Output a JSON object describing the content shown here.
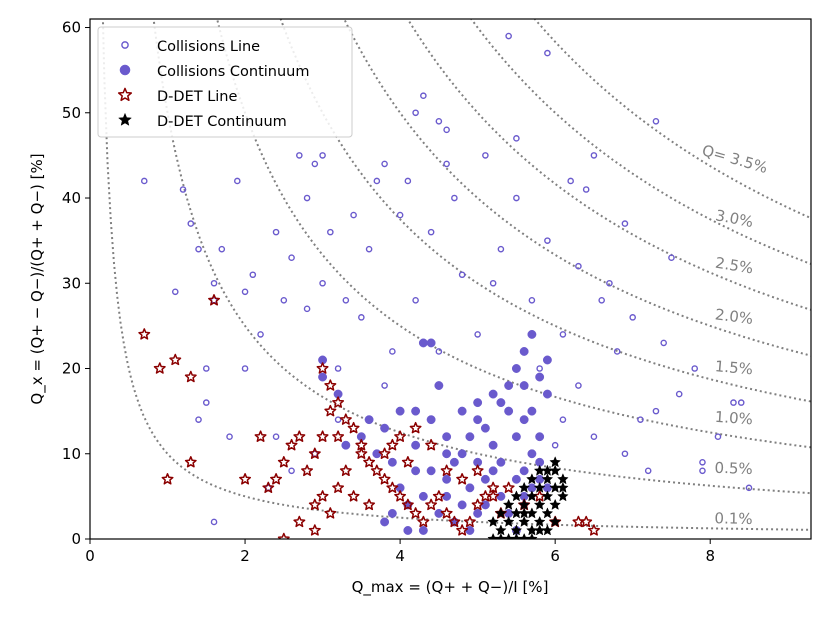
{
  "chart_data": {
    "type": "scatter",
    "xlabel": "Q_max = (Q+ + Q−)/I [%]",
    "ylabel": "Q_x = (Q+ − Q−)/(Q+ + Q−) [%]",
    "xlim": [
      0,
      9.3
    ],
    "ylim": [
      0,
      61
    ],
    "x_ticks": [
      "0",
      "2",
      "4",
      "6",
      "8"
    ],
    "y_ticks": [
      "0",
      "10",
      "20",
      "30",
      "40",
      "50",
      "60"
    ],
    "legend_position": "upper-left",
    "grid": false,
    "colors": {
      "collisions": "#6a5acd",
      "ddet_line": "#8b0000",
      "ddet_continuum": "#000000",
      "curves": "#808080"
    },
    "contours": [
      {
        "label": "Q= 3.5%",
        "q": 3.5
      },
      {
        "label": "3.0%",
        "q": 3.0
      },
      {
        "label": "2.5%",
        "q": 2.5
      },
      {
        "label": "2.0%",
        "q": 2.0
      },
      {
        "label": "1.5%",
        "q": 1.5
      },
      {
        "label": "1.0%",
        "q": 1.0
      },
      {
        "label": "0.5%",
        "q": 0.5
      },
      {
        "label": "0.1%",
        "q": 0.1
      }
    ],
    "series": [
      {
        "name": "Collisions Line",
        "marker": "open-circle",
        "points": [
          [
            5.4,
            59
          ],
          [
            5.9,
            57
          ],
          [
            6.5,
            45
          ],
          [
            7.3,
            49
          ],
          [
            6.9,
            37
          ],
          [
            8.1,
            12
          ],
          [
            8.3,
            16
          ],
          [
            8.4,
            16
          ],
          [
            7.8,
            20
          ],
          [
            7.4,
            23
          ],
          [
            7.0,
            26
          ],
          [
            6.3,
            32
          ],
          [
            5.9,
            35
          ],
          [
            4.3,
            52
          ],
          [
            4.5,
            49
          ],
          [
            4.6,
            44
          ],
          [
            4.2,
            50
          ],
          [
            3.8,
            44
          ],
          [
            4.1,
            42
          ],
          [
            4.4,
            36
          ],
          [
            4.7,
            40
          ],
          [
            5.1,
            45
          ],
          [
            5.5,
            40
          ],
          [
            5.2,
            30
          ],
          [
            5.7,
            28
          ],
          [
            6.1,
            24
          ],
          [
            6.6,
            28
          ],
          [
            7.9,
            9
          ],
          [
            7.6,
            17
          ],
          [
            7.2,
            8
          ],
          [
            6.0,
            11
          ],
          [
            6.8,
            22
          ],
          [
            3.0,
            45
          ],
          [
            2.9,
            44
          ],
          [
            2.8,
            40
          ],
          [
            3.1,
            36
          ],
          [
            2.6,
            33
          ],
          [
            2.4,
            36
          ],
          [
            2.0,
            29
          ],
          [
            1.6,
            30
          ],
          [
            1.6,
            28
          ],
          [
            1.4,
            34
          ],
          [
            1.3,
            37
          ],
          [
            1.2,
            41
          ],
          [
            1.1,
            29
          ],
          [
            0.7,
            42
          ],
          [
            1.5,
            20
          ],
          [
            1.5,
            16
          ],
          [
            1.4,
            14
          ],
          [
            1.6,
            2
          ],
          [
            1.8,
            12
          ],
          [
            2.0,
            20
          ],
          [
            2.4,
            12
          ],
          [
            2.3,
            6
          ],
          [
            2.6,
            8
          ],
          [
            3.2,
            20
          ],
          [
            3.5,
            26
          ],
          [
            3.6,
            34
          ],
          [
            3.9,
            22
          ],
          [
            4.2,
            28
          ],
          [
            4.8,
            31
          ],
          [
            5.3,
            34
          ],
          [
            5.8,
            20
          ],
          [
            6.1,
            14
          ],
          [
            6.5,
            12
          ],
          [
            6.9,
            10
          ],
          [
            7.1,
            14
          ],
          [
            8.5,
            6
          ],
          [
            7.9,
            8
          ],
          [
            2.2,
            24
          ],
          [
            2.5,
            28
          ],
          [
            3.4,
            38
          ],
          [
            3.7,
            42
          ],
          [
            4.0,
            38
          ],
          [
            4.6,
            48
          ],
          [
            5.5,
            47
          ],
          [
            6.2,
            42
          ],
          [
            6.4,
            41
          ],
          [
            6.7,
            30
          ],
          [
            7.5,
            33
          ],
          [
            1.9,
            42
          ],
          [
            2.7,
            45
          ],
          [
            1.7,
            34
          ],
          [
            2.1,
            31
          ],
          [
            3.0,
            30
          ],
          [
            3.3,
            28
          ],
          [
            2.8,
            27
          ],
          [
            6.3,
            18
          ],
          [
            7.3,
            15
          ],
          [
            5.0,
            24
          ],
          [
            4.5,
            22
          ],
          [
            3.8,
            18
          ],
          [
            3.2,
            14
          ],
          [
            2.9,
            10
          ]
        ]
      },
      {
        "name": "Collisions Continuum",
        "marker": "filled-circle",
        "points": [
          [
            3.0,
            21
          ],
          [
            3.0,
            19
          ],
          [
            3.2,
            17
          ],
          [
            3.6,
            14
          ],
          [
            3.8,
            13
          ],
          [
            4.0,
            15
          ],
          [
            4.2,
            15
          ],
          [
            4.4,
            14
          ],
          [
            4.6,
            12
          ],
          [
            4.8,
            10
          ],
          [
            4.9,
            12
          ],
          [
            5.0,
            14
          ],
          [
            5.1,
            13
          ],
          [
            5.2,
            11
          ],
          [
            5.3,
            16
          ],
          [
            5.4,
            18
          ],
          [
            5.5,
            20
          ],
          [
            5.6,
            22
          ],
          [
            5.7,
            24
          ],
          [
            5.6,
            18
          ],
          [
            5.8,
            19
          ],
          [
            5.9,
            21
          ],
          [
            5.9,
            17
          ],
          [
            5.6,
            8
          ],
          [
            5.8,
            9
          ],
          [
            4.3,
            23
          ],
          [
            4.4,
            23
          ],
          [
            4.5,
            18
          ],
          [
            4.6,
            7
          ],
          [
            4.2,
            8
          ],
          [
            4.0,
            6
          ],
          [
            3.9,
            3
          ],
          [
            3.8,
            2
          ],
          [
            4.1,
            4
          ],
          [
            4.3,
            5
          ],
          [
            4.5,
            3
          ],
          [
            4.7,
            2
          ],
          [
            4.9,
            1
          ],
          [
            5.1,
            4
          ],
          [
            5.3,
            5
          ],
          [
            5.4,
            3
          ],
          [
            5.5,
            1
          ],
          [
            5.6,
            5
          ],
          [
            5.7,
            6
          ],
          [
            4.2,
            11
          ],
          [
            4.6,
            10
          ],
          [
            4.8,
            15
          ],
          [
            5.0,
            16
          ],
          [
            5.2,
            17
          ],
          [
            5.4,
            15
          ],
          [
            5.6,
            14
          ],
          [
            5.8,
            12
          ],
          [
            5.7,
            15
          ],
          [
            5.3,
            9
          ],
          [
            5.1,
            7
          ],
          [
            4.9,
            6
          ],
          [
            4.4,
            8
          ],
          [
            3.9,
            9
          ],
          [
            3.7,
            10
          ],
          [
            3.5,
            12
          ],
          [
            3.3,
            11
          ],
          [
            4.6,
            5
          ],
          [
            4.8,
            4
          ],
          [
            5.0,
            3
          ],
          [
            4.1,
            1
          ],
          [
            4.3,
            1
          ],
          [
            4.7,
            9
          ],
          [
            5.0,
            9
          ],
          [
            5.2,
            8
          ],
          [
            5.5,
            7
          ],
          [
            5.7,
            10
          ],
          [
            5.8,
            7
          ],
          [
            5.9,
            6
          ],
          [
            5.5,
            12
          ]
        ]
      },
      {
        "name": "D-DET Line",
        "marker": "open-star",
        "points": [
          [
            0.7,
            24
          ],
          [
            0.9,
            20
          ],
          [
            1.1,
            21
          ],
          [
            1.3,
            19
          ],
          [
            1.0,
            7
          ],
          [
            1.3,
            9
          ],
          [
            1.6,
            28
          ],
          [
            2.0,
            7
          ],
          [
            2.3,
            6
          ],
          [
            2.4,
            7
          ],
          [
            2.5,
            9
          ],
          [
            2.6,
            11
          ],
          [
            2.7,
            12
          ],
          [
            2.8,
            8
          ],
          [
            2.9,
            10
          ],
          [
            3.0,
            20
          ],
          [
            3.1,
            18
          ],
          [
            3.2,
            16
          ],
          [
            3.3,
            14
          ],
          [
            3.4,
            13
          ],
          [
            3.5,
            11
          ],
          [
            3.6,
            9
          ],
          [
            3.7,
            8
          ],
          [
            3.8,
            7
          ],
          [
            3.9,
            6
          ],
          [
            4.0,
            5
          ],
          [
            4.1,
            4
          ],
          [
            4.2,
            3
          ],
          [
            4.3,
            2
          ],
          [
            4.4,
            4
          ],
          [
            4.5,
            5
          ],
          [
            4.6,
            3
          ],
          [
            4.7,
            2
          ],
          [
            4.8,
            1
          ],
          [
            4.9,
            2
          ],
          [
            5.0,
            4
          ],
          [
            5.1,
            5
          ],
          [
            5.2,
            6
          ],
          [
            5.3,
            3
          ],
          [
            6.0,
            2
          ],
          [
            6.3,
            2
          ],
          [
            6.4,
            2
          ],
          [
            6.5,
            1
          ],
          [
            2.9,
            4
          ],
          [
            3.0,
            5
          ],
          [
            3.2,
            6
          ],
          [
            3.4,
            5
          ],
          [
            3.6,
            4
          ],
          [
            3.8,
            10
          ],
          [
            4.0,
            12
          ],
          [
            4.2,
            13
          ],
          [
            4.4,
            11
          ],
          [
            4.6,
            8
          ],
          [
            4.8,
            7
          ],
          [
            5.0,
            8
          ],
          [
            5.2,
            5
          ],
          [
            5.4,
            6
          ],
          [
            5.6,
            4
          ],
          [
            5.8,
            5
          ],
          [
            2.5,
            0
          ],
          [
            2.7,
            2
          ],
          [
            2.9,
            1
          ],
          [
            3.1,
            3
          ],
          [
            3.3,
            8
          ],
          [
            3.5,
            10
          ],
          [
            2.2,
            12
          ],
          [
            3.0,
            12
          ],
          [
            3.1,
            15
          ],
          [
            3.2,
            12
          ],
          [
            4.1,
            9
          ],
          [
            3.9,
            11
          ]
        ]
      },
      {
        "name": "D-DET Continuum",
        "marker": "filled-star",
        "points": [
          [
            5.2,
            2
          ],
          [
            5.3,
            1
          ],
          [
            5.4,
            0
          ],
          [
            5.5,
            1
          ],
          [
            5.6,
            2
          ],
          [
            5.7,
            3
          ],
          [
            5.8,
            4
          ],
          [
            5.9,
            5
          ],
          [
            6.0,
            6
          ],
          [
            6.0,
            8
          ],
          [
            6.1,
            7
          ],
          [
            5.9,
            7
          ],
          [
            5.8,
            6
          ],
          [
            5.7,
            5
          ],
          [
            5.6,
            4
          ],
          [
            5.5,
            3
          ],
          [
            5.4,
            2
          ],
          [
            5.3,
            3
          ],
          [
            5.5,
            5
          ],
          [
            5.6,
            6
          ],
          [
            5.7,
            7
          ],
          [
            5.8,
            8
          ],
          [
            5.9,
            8
          ],
          [
            6.0,
            9
          ],
          [
            5.4,
            4
          ],
          [
            5.6,
            3
          ],
          [
            5.7,
            1
          ],
          [
            5.8,
            2
          ],
          [
            5.9,
            3
          ],
          [
            6.0,
            4
          ],
          [
            6.1,
            5
          ],
          [
            6.1,
            6
          ],
          [
            5.5,
            0
          ],
          [
            5.6,
            0
          ],
          [
            5.7,
            0
          ],
          [
            5.3,
            0
          ],
          [
            5.2,
            0
          ],
          [
            5.9,
            1
          ],
          [
            6.0,
            2
          ],
          [
            5.8,
            1
          ]
        ]
      }
    ]
  }
}
